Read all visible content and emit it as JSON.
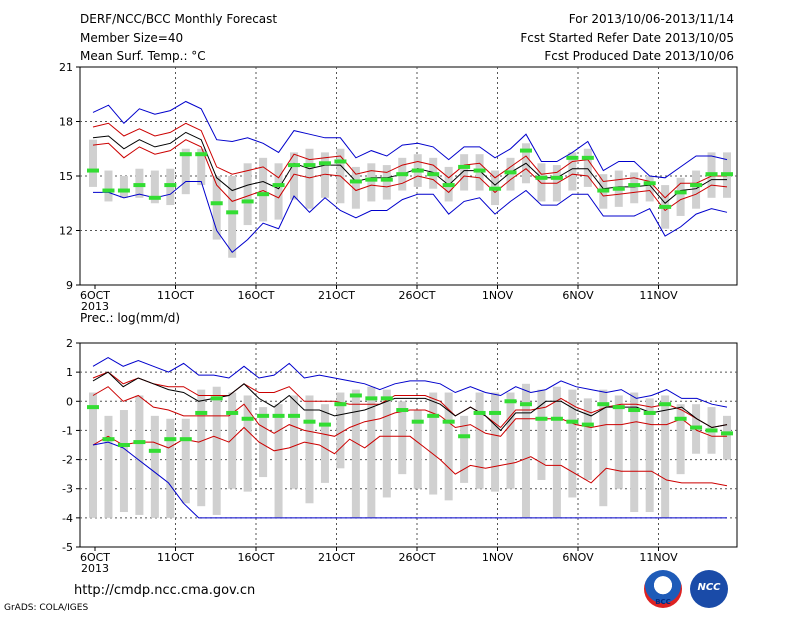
{
  "header": {
    "title": "DERF/NCC/BCC Monthly Forecast",
    "member_size": "Member Size=40",
    "variable": "Mean Surf. Temp.: °C",
    "forecast_period": "For 2013/10/06-2013/11/14",
    "start_date": "Fcst Started Refer Date 2013/10/05",
    "produced_date": "Fcst Produced Date 2013/10/06"
  },
  "lower_title": "Prec.: log(mm/d)",
  "footer": {
    "url": "http://cmdp.ncc.cma.gov.cn",
    "credit": "GrADS: COLA/IGES"
  },
  "logos": {
    "bcc": "BCC",
    "ncc": "NCC"
  },
  "colors": {
    "envelope": "#0000cc",
    "spread": "#cc0000",
    "mean": "#000000",
    "box": "#d0d0d0",
    "median": "#33dd33",
    "grid": "#555555"
  },
  "chart_data": [
    {
      "type": "line",
      "title": "Mean Surf. Temp.: °C",
      "x_ticks": [
        "6OCT",
        "11OCT",
        "16OCT",
        "21OCT",
        "26OCT",
        "1NOV",
        "6NOV",
        "11NOV"
      ],
      "year_label": "2013",
      "y_ticks": [
        "9",
        "12",
        "15",
        "18",
        "21"
      ],
      "ylim": [
        9,
        21
      ],
      "grid": true,
      "days": 40,
      "series": [
        {
          "name": "max",
          "values": [
            18.5,
            18.9,
            17.9,
            18.7,
            18.4,
            18.6,
            19.1,
            18.7,
            17.0,
            16.9,
            17.1,
            16.8,
            16.3,
            17.5,
            17.3,
            17.1,
            17.1,
            16.0,
            16.4,
            16.1,
            16.7,
            16.8,
            16.6,
            15.9,
            16.6,
            16.6,
            16.0,
            16.5,
            17.3,
            15.8,
            15.8,
            16.3,
            16.9,
            15.3,
            15.8,
            15.8,
            15.0,
            14.9,
            15.5,
            16.1,
            16.1,
            15.9
          ]
        },
        {
          "name": "upper",
          "values": [
            17.7,
            17.9,
            17.2,
            17.6,
            17.2,
            17.4,
            17.9,
            17.5,
            15.5,
            15.1,
            15.3,
            15.5,
            14.9,
            16.2,
            15.9,
            16.0,
            16.1,
            15.1,
            15.3,
            15.2,
            15.6,
            15.8,
            15.6,
            14.9,
            15.6,
            15.7,
            14.9,
            15.5,
            16.1,
            15.1,
            15.2,
            15.8,
            15.9,
            14.7,
            14.8,
            14.9,
            14.7,
            13.8,
            14.6,
            14.6,
            15.0,
            15.0
          ]
        },
        {
          "name": "mean",
          "values": [
            17.1,
            17.2,
            16.5,
            17.0,
            16.6,
            16.8,
            17.4,
            17.0,
            14.9,
            14.2,
            14.5,
            14.7,
            14.3,
            15.7,
            15.4,
            15.6,
            15.6,
            14.7,
            14.9,
            14.9,
            15.1,
            15.4,
            15.2,
            14.5,
            15.3,
            15.3,
            14.5,
            15.2,
            15.7,
            14.9,
            14.9,
            15.4,
            15.4,
            14.3,
            14.4,
            14.4,
            14.5,
            13.5,
            14.2,
            14.3,
            14.8,
            14.8
          ]
        },
        {
          "name": "lower",
          "values": [
            16.7,
            16.8,
            16.0,
            16.6,
            16.2,
            16.4,
            17.0,
            16.6,
            14.5,
            13.6,
            13.9,
            14.2,
            13.8,
            15.1,
            14.9,
            15.1,
            15.0,
            14.2,
            14.5,
            14.4,
            14.6,
            15.0,
            14.8,
            14.1,
            15.0,
            14.9,
            14.1,
            14.8,
            15.4,
            14.6,
            14.6,
            15.1,
            15.0,
            13.9,
            14.0,
            14.1,
            14.2,
            13.1,
            13.7,
            14.0,
            14.5,
            14.4
          ]
        },
        {
          "name": "min",
          "values": [
            14.1,
            14.1,
            13.8,
            14.0,
            13.8,
            14.0,
            14.7,
            14.7,
            12.0,
            10.8,
            11.5,
            12.4,
            12.1,
            13.9,
            13.0,
            13.8,
            13.1,
            12.7,
            13.1,
            13.1,
            13.7,
            14.0,
            14.0,
            12.9,
            13.6,
            13.8,
            12.9,
            13.6,
            14.2,
            13.4,
            13.4,
            14.0,
            14.0,
            12.8,
            12.8,
            12.8,
            13.2,
            11.7,
            12.2,
            12.9,
            13.2,
            13.0
          ]
        }
      ],
      "boxes": [
        {
          "high": 17.0,
          "low": 14.4,
          "median": 15.3
        },
        {
          "high": 15.3,
          "low": 13.6,
          "median": 14.2
        },
        {
          "high": 15.0,
          "low": 13.8,
          "median": 14.2
        },
        {
          "high": 15.4,
          "low": 13.8,
          "median": 14.5
        },
        {
          "high": 15.3,
          "low": 13.5,
          "median": 13.8
        },
        {
          "high": 15.4,
          "low": 13.4,
          "median": 14.5
        },
        {
          "high": 16.5,
          "low": 14.0,
          "median": 16.2
        },
        {
          "high": 16.5,
          "low": 14.5,
          "median": 16.2
        },
        {
          "high": 15.0,
          "low": 11.5,
          "median": 13.5
        },
        {
          "high": 15.0,
          "low": 10.5,
          "median": 13.0
        },
        {
          "high": 15.7,
          "low": 12.3,
          "median": 13.6
        },
        {
          "high": 16.0,
          "low": 12.5,
          "median": 14.0
        },
        {
          "high": 15.7,
          "low": 12.6,
          "median": 14.5
        },
        {
          "high": 16.3,
          "low": 13.7,
          "median": 15.6
        },
        {
          "high": 16.5,
          "low": 13.2,
          "median": 15.6
        },
        {
          "high": 16.3,
          "low": 13.8,
          "median": 15.7
        },
        {
          "high": 16.5,
          "low": 13.5,
          "median": 15.8
        },
        {
          "high": 15.5,
          "low": 13.2,
          "median": 14.7
        },
        {
          "high": 15.7,
          "low": 13.6,
          "median": 14.8
        },
        {
          "high": 15.6,
          "low": 13.7,
          "median": 14.8
        },
        {
          "high": 16.0,
          "low": 14.2,
          "median": 15.1
        },
        {
          "high": 16.2,
          "low": 14.4,
          "median": 15.3
        },
        {
          "high": 16.0,
          "low": 14.3,
          "median": 15.1
        },
        {
          "high": 15.5,
          "low": 13.6,
          "median": 14.5
        },
        {
          "high": 16.2,
          "low": 14.2,
          "median": 15.5
        },
        {
          "high": 16.2,
          "low": 14.2,
          "median": 15.3
        },
        {
          "high": 15.3,
          "low": 13.4,
          "median": 14.3
        },
        {
          "high": 16.0,
          "low": 14.2,
          "median": 15.2
        },
        {
          "high": 16.8,
          "low": 14.6,
          "median": 16.4
        },
        {
          "high": 15.7,
          "low": 13.6,
          "median": 14.9
        },
        {
          "high": 15.6,
          "low": 13.6,
          "median": 14.9
        },
        {
          "high": 16.3,
          "low": 14.2,
          "median": 16.0
        },
        {
          "high": 16.5,
          "low": 14.4,
          "median": 16.0
        },
        {
          "high": 15.1,
          "low": 13.2,
          "median": 14.2
        },
        {
          "high": 15.3,
          "low": 13.3,
          "median": 14.3
        },
        {
          "high": 15.2,
          "low": 13.5,
          "median": 14.5
        },
        {
          "high": 15.0,
          "low": 13.6,
          "median": 14.6
        },
        {
          "high": 14.5,
          "low": 12.1,
          "median": 13.3
        },
        {
          "high": 14.9,
          "low": 12.8,
          "median": 14.1
        },
        {
          "high": 15.3,
          "low": 13.2,
          "median": 14.5
        },
        {
          "high": 16.3,
          "low": 13.8,
          "median": 15.1
        },
        {
          "high": 16.3,
          "low": 13.8,
          "median": 15.1
        }
      ]
    },
    {
      "type": "line",
      "title": "Prec.: log(mm/d)",
      "x_ticks": [
        "6OCT",
        "11OCT",
        "16OCT",
        "21OCT",
        "26OCT",
        "1NOV",
        "6NOV",
        "11NOV"
      ],
      "year_label": "2013",
      "y_ticks": [
        "2",
        "1",
        "0",
        "-1",
        "-2",
        "-3",
        "-4",
        "-5"
      ],
      "ylim": [
        -5,
        2
      ],
      "grid": true,
      "days": 40,
      "series": [
        {
          "name": "max",
          "values": [
            1.2,
            1.5,
            1.2,
            1.4,
            1.2,
            1.0,
            1.3,
            0.9,
            0.9,
            0.8,
            1.2,
            0.8,
            0.9,
            1.3,
            0.8,
            0.9,
            0.8,
            0.7,
            0.6,
            0.4,
            0.6,
            0.7,
            0.7,
            0.6,
            0.3,
            0.5,
            0.3,
            0.2,
            0.5,
            0.3,
            0.4,
            0.7,
            0.5,
            0.4,
            0.3,
            0.4,
            0.1,
            0.2,
            0.4,
            0.1,
            0.1,
            -0.1,
            -0.2
          ]
        },
        {
          "name": "upper",
          "values": [
            0.8,
            1.0,
            0.6,
            0.8,
            0.6,
            0.5,
            0.5,
            0.2,
            0.2,
            0.2,
            0.6,
            0.3,
            0.3,
            0.5,
            0.0,
            0.0,
            0.0,
            -0.1,
            -0.1,
            -0.1,
            0.2,
            0.2,
            0.2,
            0.0,
            -0.5,
            -0.2,
            -0.5,
            -0.9,
            -0.3,
            -0.3,
            -0.2,
            0.1,
            -0.2,
            -0.4,
            -0.2,
            -0.1,
            -0.1,
            -0.2,
            -0.1,
            -0.3,
            -0.6,
            -0.9,
            -0.8
          ]
        },
        {
          "name": "mean",
          "values": [
            0.7,
            1.0,
            0.5,
            0.8,
            0.6,
            0.4,
            0.3,
            0.0,
            0.1,
            0.2,
            0.6,
            0.1,
            -0.2,
            0.2,
            -0.3,
            -0.3,
            -0.5,
            -0.4,
            -0.3,
            -0.1,
            0.1,
            0.1,
            0.1,
            -0.1,
            -0.5,
            -0.2,
            -0.5,
            -1.0,
            -0.4,
            -0.4,
            0.0,
            0.0,
            -0.3,
            -0.5,
            -0.2,
            -0.2,
            -0.2,
            -0.4,
            -0.3,
            -0.2,
            -0.6,
            -0.9,
            -0.8
          ]
        },
        {
          "name": "lower",
          "values": [
            0.2,
            0.5,
            0.0,
            0.2,
            -0.2,
            -0.3,
            -0.5,
            -0.5,
            -0.5,
            -0.5,
            -0.1,
            -0.8,
            -1.1,
            -0.8,
            -1.0,
            -1.1,
            -1.2,
            -0.9,
            -0.7,
            -0.6,
            -0.4,
            -0.3,
            -0.3,
            -0.5,
            -0.9,
            -0.8,
            -1.1,
            -1.2,
            -0.6,
            -0.6,
            -0.6,
            -0.6,
            -0.8,
            -0.9,
            -0.8,
            -0.8,
            -0.7,
            -0.8,
            -0.8,
            -0.6,
            -1.0,
            -1.2,
            -1.2
          ]
        },
        {
          "name": "low",
          "values": [
            -1.5,
            -1.2,
            -1.5,
            -1.4,
            -1.4,
            -1.6,
            -1.3,
            -1.4,
            -1.2,
            -1.4,
            -0.9,
            -1.4,
            -1.7,
            -1.6,
            -1.4,
            -1.5,
            -1.8,
            -1.3,
            -1.6,
            -1.2,
            -1.2,
            -1.2,
            -1.6,
            -2.0,
            -2.5,
            -2.2,
            -2.3,
            -2.2,
            -2.1,
            -1.9,
            -2.2,
            -2.2,
            -2.5,
            -2.8,
            -2.3,
            -2.4,
            -2.4,
            -2.4,
            -2.7,
            -2.8,
            -2.8,
            -2.8,
            -2.9
          ]
        },
        {
          "name": "min",
          "values": [
            -1.5,
            -1.4,
            -1.6,
            -2.0,
            -2.4,
            -2.8,
            -3.5,
            -4.0,
            -4.0,
            -4.0,
            -4.0,
            -4.0,
            -4.0,
            -4.0,
            -4.0,
            -4.0,
            -4.0,
            -4.0,
            -4.0,
            -4.0,
            -4.0,
            -4.0,
            -4.0,
            -4.0,
            -4.0,
            -4.0,
            -4.0,
            -4.0,
            -4.0,
            -4.0,
            -4.0,
            -4.0,
            -4.0,
            -4.0,
            -4.0,
            -4.0,
            -4.0,
            -4.0,
            -4.0,
            -4.0,
            -4.0,
            -4.0,
            -4.0
          ]
        }
      ],
      "boxes": [
        {
          "high": 0.3,
          "low": -4.0,
          "median": -0.2
        },
        {
          "high": -0.5,
          "low": -4.0,
          "median": -1.3
        },
        {
          "high": -0.3,
          "low": -3.8,
          "median": -1.5
        },
        {
          "high": 0.2,
          "low": -3.9,
          "median": -1.4
        },
        {
          "high": -0.5,
          "low": -4.0,
          "median": -1.7
        },
        {
          "high": -0.6,
          "low": -4.0,
          "median": -1.3
        },
        {
          "high": -0.6,
          "low": -3.5,
          "median": -1.3
        },
        {
          "high": 0.4,
          "low": -3.6,
          "median": -0.4
        },
        {
          "high": 0.5,
          "low": -3.9,
          "median": 0.1
        },
        {
          "high": 0.3,
          "low": -3.0,
          "median": -0.4
        },
        {
          "high": 0.2,
          "low": -3.1,
          "median": -0.6
        },
        {
          "high": -0.2,
          "low": -2.6,
          "median": -0.5
        },
        {
          "high": -0.1,
          "low": -4.0,
          "median": -0.5
        },
        {
          "high": 0.2,
          "low": -3.0,
          "median": -0.5
        },
        {
          "high": 0.2,
          "low": -3.5,
          "median": -0.7
        },
        {
          "high": -0.1,
          "low": -2.8,
          "median": -0.8
        },
        {
          "high": 0.3,
          "low": -2.3,
          "median": -0.1
        },
        {
          "high": 0.4,
          "low": -4.0,
          "median": 0.2
        },
        {
          "high": 0.5,
          "low": -4.0,
          "median": 0.1
        },
        {
          "high": 0.4,
          "low": -3.3,
          "median": 0.1
        },
        {
          "high": 0.0,
          "low": -2.5,
          "median": -0.3
        },
        {
          "high": -0.3,
          "low": -3.0,
          "median": -0.7
        },
        {
          "high": 0.3,
          "low": -3.2,
          "median": -0.5
        },
        {
          "high": 0.3,
          "low": -3.4,
          "median": -0.7
        },
        {
          "high": -0.5,
          "low": -2.8,
          "median": -1.2
        },
        {
          "high": 0.3,
          "low": -3.0,
          "median": -0.4
        },
        {
          "high": 0.3,
          "low": -3.1,
          "median": -0.4
        },
        {
          "high": 0.3,
          "low": -3.0,
          "median": 0.0
        },
        {
          "high": 0.6,
          "low": -4.0,
          "median": -0.1
        },
        {
          "high": 0.4,
          "low": -2.7,
          "median": -0.6
        },
        {
          "high": 0.5,
          "low": -4.0,
          "median": -0.6
        },
        {
          "high": 0.4,
          "low": -3.3,
          "median": -0.7
        },
        {
          "high": 0.1,
          "low": -2.7,
          "median": -0.8
        },
        {
          "high": 0.4,
          "low": -3.6,
          "median": -0.1
        },
        {
          "high": 0.2,
          "low": -3.0,
          "median": -0.2
        },
        {
          "high": 0.3,
          "low": -3.8,
          "median": -0.3
        },
        {
          "high": 0.1,
          "low": -3.8,
          "median": -0.4
        },
        {
          "high": 0.2,
          "low": -4.0,
          "median": -0.1
        },
        {
          "high": -0.1,
          "low": -2.5,
          "median": -0.6
        },
        {
          "high": -0.1,
          "low": -1.8,
          "median": -0.9
        },
        {
          "high": -0.2,
          "low": -1.8,
          "median": -1.0
        },
        {
          "high": -0.5,
          "low": -2.0,
          "median": -1.1
        }
      ]
    }
  ]
}
